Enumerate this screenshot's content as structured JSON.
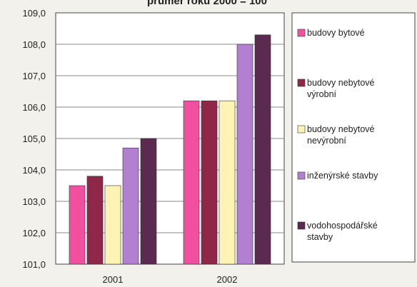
{
  "chart_data": {
    "type": "bar",
    "title": "průměr roku 2000 = 100",
    "xlabel": "",
    "ylabel": "",
    "categories": [
      "2001",
      "2002"
    ],
    "ylim": [
      101.0,
      109.0
    ],
    "yticks": [
      "101,0",
      "102,0",
      "103,0",
      "104,0",
      "105,0",
      "106,0",
      "107,0",
      "108,0",
      "109,0"
    ],
    "grid": true,
    "legend_position": "right",
    "series": [
      {
        "name": "budovy bytové",
        "values": [
          103.5,
          106.2
        ],
        "color": "#f0509e"
      },
      {
        "name": "budovy nebytové výrobní",
        "values": [
          103.8,
          106.2
        ],
        "color": "#8f2748"
      },
      {
        "name": "budovy nebytové nevýrobní",
        "values": [
          103.5,
          106.2
        ],
        "color": "#fcf3b4"
      },
      {
        "name": "inženýrské stavby",
        "values": [
          104.7,
          108.0
        ],
        "color": "#b27fd1"
      },
      {
        "name": "vodohospodářské stavby",
        "values": [
          105.0,
          108.3
        ],
        "color": "#5a2a4f"
      }
    ]
  }
}
